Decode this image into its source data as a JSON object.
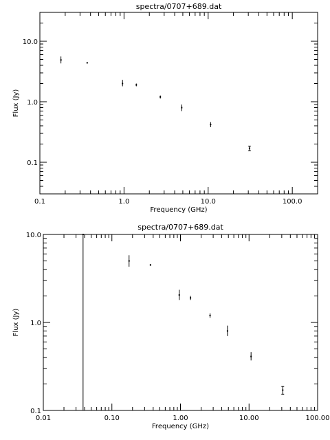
{
  "chart_data": [
    {
      "type": "scatter",
      "title": "spectra/0707+689.dat",
      "xlabel": "Frequency (GHz)",
      "ylabel": "Flux (Jy)",
      "xscale": "log",
      "yscale": "log",
      "xlim": [
        0.1,
        200
      ],
      "ylim": [
        0.03,
        30
      ],
      "xticks": [
        {
          "value": 0.1,
          "label": "0.1"
        },
        {
          "value": 1,
          "label": "1.0"
        },
        {
          "value": 10,
          "label": "10.0"
        },
        {
          "value": 100,
          "label": "100.0"
        }
      ],
      "yticks": [
        {
          "value": 0.1,
          "label": "0.1"
        },
        {
          "value": 1,
          "label": "1.0"
        },
        {
          "value": 10,
          "label": "10.0"
        }
      ],
      "grid": false,
      "points": [
        {
          "x": 0.178,
          "y": 4.9,
          "ylo": 4.3,
          "yhi": 5.6
        },
        {
          "x": 0.365,
          "y": 4.4,
          "ylo": 4.3,
          "yhi": 4.5
        },
        {
          "x": 0.96,
          "y": 2.0,
          "ylo": 1.8,
          "yhi": 2.3
        },
        {
          "x": 1.4,
          "y": 1.9,
          "ylo": 1.8,
          "yhi": 2.0
        },
        {
          "x": 2.7,
          "y": 1.2,
          "ylo": 1.13,
          "yhi": 1.27
        },
        {
          "x": 4.85,
          "y": 0.8,
          "ylo": 0.7,
          "yhi": 0.9
        },
        {
          "x": 10.7,
          "y": 0.42,
          "ylo": 0.38,
          "yhi": 0.46
        },
        {
          "x": 31,
          "y": 0.17,
          "ylo": 0.155,
          "yhi": 0.185
        }
      ]
    },
    {
      "type": "scatter",
      "title": "spectra/0707+689.dat",
      "xlabel": "Frequency (GHz)",
      "ylabel": "Flux (Jy)",
      "xscale": "log",
      "yscale": "log",
      "xlim": [
        0.01,
        100
      ],
      "ylim": [
        0.1,
        10
      ],
      "xticks": [
        {
          "value": 0.01,
          "label": "0.01"
        },
        {
          "value": 0.1,
          "label": "0.10"
        },
        {
          "value": 1,
          "label": "1.00"
        },
        {
          "value": 10,
          "label": "10.00"
        },
        {
          "value": 100,
          "label": "100.00"
        }
      ],
      "yticks": [
        {
          "value": 0.1,
          "label": "0.1"
        },
        {
          "value": 1,
          "label": "1.0"
        },
        {
          "value": 10,
          "label": "10.0"
        }
      ],
      "grid": false,
      "points": [
        {
          "x": 0.038,
          "y": 10,
          "ylo": 0.1,
          "yhi": 10
        },
        {
          "x": 0.178,
          "y": 5.0,
          "ylo": 4.3,
          "yhi": 5.8
        },
        {
          "x": 0.365,
          "y": 4.5,
          "ylo": 4.4,
          "yhi": 4.6
        },
        {
          "x": 0.96,
          "y": 2.05,
          "ylo": 1.8,
          "yhi": 2.35
        },
        {
          "x": 1.4,
          "y": 1.9,
          "ylo": 1.8,
          "yhi": 2.0
        },
        {
          "x": 2.7,
          "y": 1.2,
          "ylo": 1.13,
          "yhi": 1.27
        },
        {
          "x": 4.85,
          "y": 0.8,
          "ylo": 0.7,
          "yhi": 0.92
        },
        {
          "x": 10.7,
          "y": 0.41,
          "ylo": 0.37,
          "yhi": 0.46
        },
        {
          "x": 31,
          "y": 0.17,
          "ylo": 0.153,
          "yhi": 0.187
        }
      ]
    }
  ]
}
